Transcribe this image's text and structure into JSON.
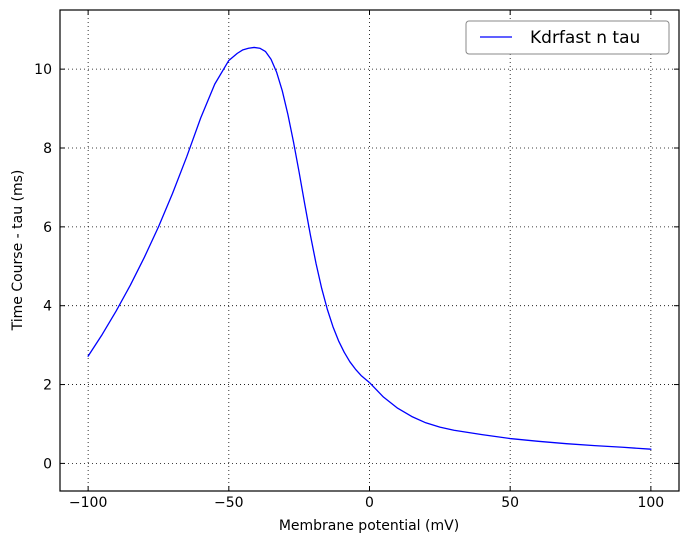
{
  "chart_data": {
    "type": "line",
    "title": "",
    "xlabel": "Membrane potential (mV)",
    "ylabel": "Time Course - tau (ms)",
    "xlim": [
      -110,
      110
    ],
    "ylim": [
      -0.7,
      11.5
    ],
    "xticks": [
      -100,
      -50,
      0,
      50,
      100
    ],
    "xtick_labels": [
      "−100",
      "−50",
      "0",
      "50",
      "100"
    ],
    "yticks": [
      0,
      2,
      4,
      6,
      8,
      10
    ],
    "ytick_labels": [
      "0",
      "2",
      "4",
      "6",
      "8",
      "10"
    ],
    "grid": true,
    "legend_position": "top-right",
    "series": [
      {
        "name": "Kdrfast n tau",
        "color": "#0000ff",
        "x": [
          -100,
          -95,
          -90,
          -85,
          -80,
          -75,
          -70,
          -65,
          -60,
          -55,
          -50,
          -47,
          -45,
          -43,
          -41,
          -39,
          -37,
          -35,
          -33,
          -31,
          -29,
          -27,
          -25,
          -23,
          -21,
          -19,
          -17,
          -15,
          -13,
          -11,
          -9,
          -7,
          -5,
          -3,
          -1,
          0,
          5,
          10,
          15,
          20,
          25,
          30,
          40,
          50,
          60,
          70,
          80,
          90,
          100
        ],
        "y": [
          2.72,
          3.27,
          3.87,
          4.52,
          5.23,
          6.0,
          6.85,
          7.77,
          8.76,
          9.62,
          10.22,
          10.4,
          10.49,
          10.53,
          10.55,
          10.53,
          10.45,
          10.25,
          9.92,
          9.45,
          8.85,
          8.15,
          7.38,
          6.57,
          5.79,
          5.07,
          4.44,
          3.91,
          3.47,
          3.11,
          2.82,
          2.58,
          2.39,
          2.23,
          2.11,
          2.05,
          1.68,
          1.4,
          1.19,
          1.03,
          0.92,
          0.84,
          0.73,
          0.63,
          0.56,
          0.5,
          0.45,
          0.41,
          0.36
        ]
      }
    ]
  }
}
